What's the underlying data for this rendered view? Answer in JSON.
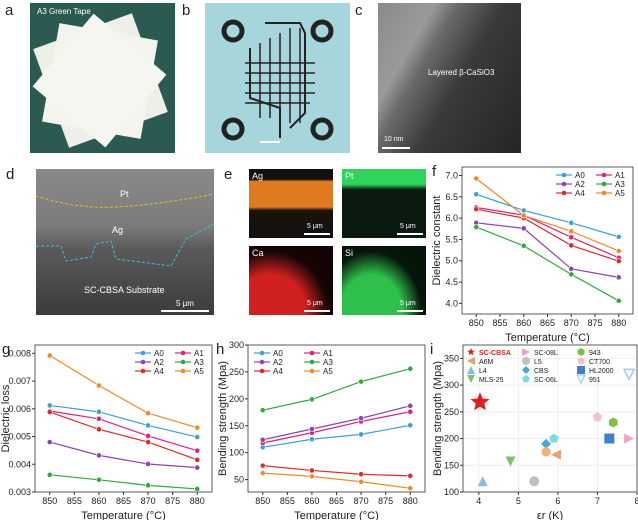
{
  "panels": {
    "a": {
      "label": "a",
      "caption": "A3 Green Tape"
    },
    "b": {
      "label": "b"
    },
    "c": {
      "label": "c",
      "caption": "Layered β-CaSiO3",
      "scale": "10 nm"
    },
    "d": {
      "label": "d",
      "pt": "Pt",
      "ag": "Ag",
      "substrate": "SC-CBSA Substrate",
      "scale": "5 μm"
    },
    "e": {
      "label": "e",
      "tiles": [
        {
          "element": "Ag",
          "scale": "5 μm",
          "color": "#e07a1e"
        },
        {
          "element": "Pt",
          "scale": "5 μm",
          "color": "#2fd45a"
        },
        {
          "element": "Ca",
          "scale": "5 μm",
          "color": "#d02020"
        },
        {
          "element": "Si",
          "scale": "5 μm",
          "color": "#2ec04a"
        }
      ]
    }
  },
  "chart_data": [
    {
      "panel": "f",
      "type": "line",
      "xlabel": "Temperature (°C)",
      "ylabel": "Dielectric constant",
      "x": [
        850,
        860,
        870,
        880
      ],
      "xlim": [
        847,
        883
      ],
      "ylim": [
        3.75,
        7.2
      ],
      "xticks": [
        850,
        855,
        860,
        865,
        870,
        875,
        880
      ],
      "yticks": [
        "4.0",
        "4.5",
        "5.0",
        "5.5",
        "6.0",
        "6.5",
        "7.0"
      ],
      "legend": "top-right",
      "series": [
        {
          "name": "A0",
          "color": "#3b9fd8",
          "values": [
            6.56,
            6.18,
            5.89,
            5.56
          ]
        },
        {
          "name": "A1",
          "color": "#e0207a",
          "values": [
            6.25,
            6.07,
            5.55,
            5.07
          ]
        },
        {
          "name": "A2",
          "color": "#8e44ad",
          "values": [
            5.89,
            5.76,
            4.81,
            4.61
          ]
        },
        {
          "name": "A3",
          "color": "#2eaa3a",
          "values": [
            5.79,
            5.35,
            4.68,
            4.06
          ]
        },
        {
          "name": "A4",
          "color": "#e02a2a",
          "values": [
            6.21,
            6.0,
            5.36,
            4.99
          ]
        },
        {
          "name": "A5",
          "color": "#f08a24",
          "values": [
            6.93,
            6.06,
            5.69,
            5.23
          ]
        }
      ]
    },
    {
      "panel": "g",
      "type": "line",
      "xlabel": "Temperature (°C)",
      "ylabel": "Dielectric loss",
      "x": [
        850,
        860,
        870,
        880
      ],
      "xlim": [
        847,
        883
      ],
      "ylim": [
        0.003,
        0.0083
      ],
      "xticks": [
        850,
        855,
        860,
        865,
        870,
        875,
        880
      ],
      "yticks": [
        "0.003",
        "0.004",
        "0.005",
        "0.006",
        "0.007",
        "0.008"
      ],
      "legend": "top-right",
      "series": [
        {
          "name": "A0",
          "color": "#3b9fd8",
          "values": [
            0.00612,
            0.00589,
            0.0054,
            0.00498
          ]
        },
        {
          "name": "A1",
          "color": "#e0207a",
          "values": [
            0.00592,
            0.00564,
            0.00502,
            0.00449
          ]
        },
        {
          "name": "A2",
          "color": "#8e44ad",
          "values": [
            0.0048,
            0.00432,
            0.00401,
            0.00388
          ]
        },
        {
          "name": "A3",
          "color": "#2eaa3a",
          "values": [
            0.00362,
            0.00344,
            0.00324,
            0.00311
          ]
        },
        {
          "name": "A4",
          "color": "#e02a2a",
          "values": [
            0.00588,
            0.00526,
            0.0048,
            0.00416
          ]
        },
        {
          "name": "A5",
          "color": "#f08a24",
          "values": [
            0.00792,
            0.00684,
            0.00584,
            0.00532
          ]
        }
      ]
    },
    {
      "panel": "h",
      "type": "line",
      "xlabel": "Temperature (°C)",
      "ylabel": "Bending strength (Mpa)",
      "x": [
        850,
        860,
        870,
        880
      ],
      "xlim": [
        847,
        883
      ],
      "ylim": [
        27,
        300
      ],
      "xticks": [
        850,
        855,
        860,
        865,
        870,
        875,
        880
      ],
      "yticks": [
        "50",
        "100",
        "150",
        "200",
        "250",
        "300"
      ],
      "legend": "top-left",
      "series": [
        {
          "name": "A0",
          "color": "#3b9fd8",
          "values": [
            110,
            125,
            134,
            151
          ]
        },
        {
          "name": "A1",
          "color": "#e0207a",
          "values": [
            118,
            137,
            158,
            176
          ]
        },
        {
          "name": "A2",
          "color": "#8e44ad",
          "values": [
            124,
            144,
            164,
            187
          ]
        },
        {
          "name": "A3",
          "color": "#2eaa3a",
          "values": [
            179,
            199,
            232,
            256
          ]
        },
        {
          "name": "A4",
          "color": "#e02a2a",
          "values": [
            76,
            67,
            60,
            57
          ]
        },
        {
          "name": "A5",
          "color": "#f08a24",
          "values": [
            62,
            56,
            46,
            34
          ]
        }
      ]
    },
    {
      "panel": "i",
      "type": "scatter",
      "xlabel": "εr (K)",
      "ylabel": "Bending strength (Mpa)",
      "xlim": [
        3.6,
        8.0
      ],
      "ylim": [
        100,
        375
      ],
      "xticks": [
        "4",
        "5",
        "6",
        "7",
        "8"
      ],
      "yticks": [
        "100",
        "150",
        "200",
        "250",
        "300",
        "350"
      ],
      "grid": true,
      "legend": "top",
      "points": [
        {
          "name": "SC-CBSA",
          "x": 4.03,
          "y": 268,
          "color": "#e02020",
          "marker": "star",
          "highlight": true
        },
        {
          "name": "A6M",
          "x": 5.95,
          "y": 170,
          "color": "#e8a070",
          "marker": "triangle-left"
        },
        {
          "name": "L4",
          "x": 4.1,
          "y": 120,
          "color": "#8ab8e8",
          "marker": "triangle-up"
        },
        {
          "name": "MLS-25",
          "x": 4.8,
          "y": 157,
          "color": "#7cc070",
          "marker": "triangle-down"
        },
        {
          "name": "SC-08L",
          "x": 7.8,
          "y": 200,
          "color": "#f4a0c8",
          "marker": "triangle-right"
        },
        {
          "name": "L5",
          "x": 5.4,
          "y": 120,
          "color": "#c0c0c0",
          "marker": "circle"
        },
        {
          "name": "CBS",
          "x": 5.7,
          "y": 190,
          "color": "#40a8e0",
          "marker": "diamond-half"
        },
        {
          "name": "SC-06L",
          "x": 5.9,
          "y": 200,
          "color": "#80d8e0",
          "marker": "pentagon"
        },
        {
          "name": "943",
          "x": 7.4,
          "y": 230,
          "color": "#80c040",
          "marker": "hexagon"
        },
        {
          "name": "CT700",
          "x": 7.0,
          "y": 240,
          "color": "#f0c0d8",
          "marker": "pentagon"
        },
        {
          "name": "HL2000",
          "x": 7.3,
          "y": 200,
          "color": "#4080d0",
          "marker": "square"
        },
        {
          "name": "951",
          "x": 7.8,
          "y": 320,
          "color": "#a0c8f0",
          "marker": "triangle-down-open"
        },
        {
          "name": "",
          "x": 5.7,
          "y": 175,
          "color": "#f0b070",
          "marker": "hexagon"
        }
      ]
    }
  ]
}
